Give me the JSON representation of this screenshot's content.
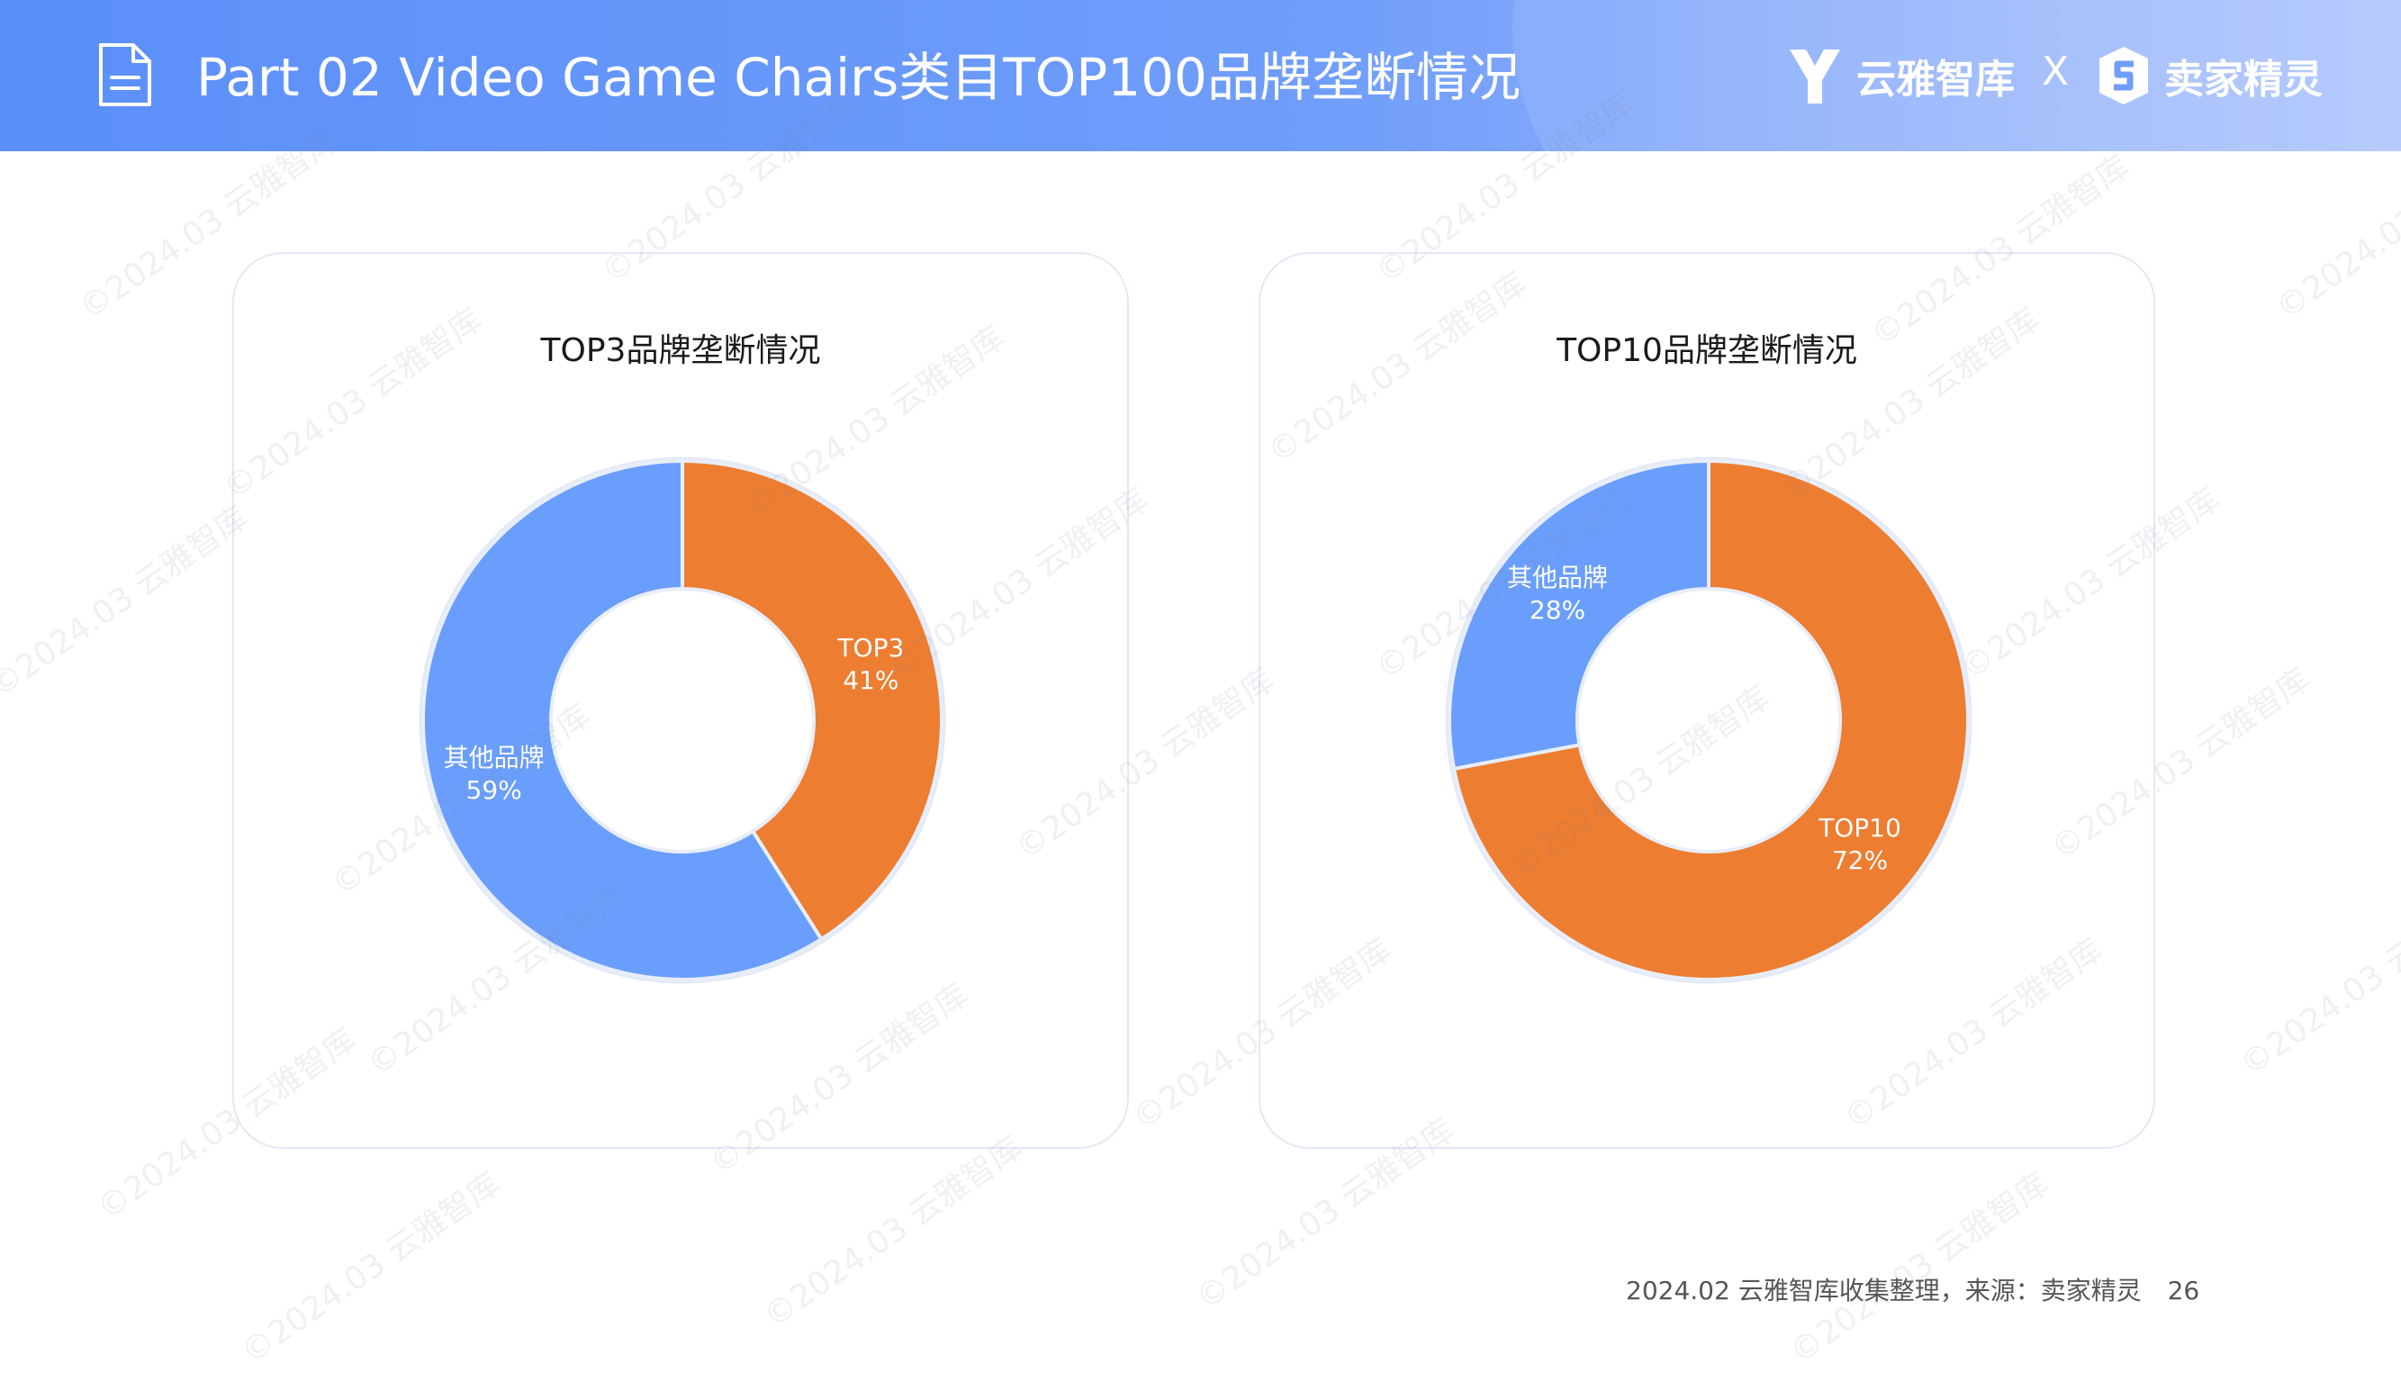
{
  "header": {
    "title": "Part 02 Video Game Chairs类目TOP100品牌垄断情况",
    "brand_left": "云雅智库",
    "brand_x": "X",
    "brand_right": "卖家精灵"
  },
  "colors": {
    "accent_orange": "#ed7d31",
    "accent_blue": "#6a9efc",
    "header_blue": "#5b8ff9"
  },
  "chart_data": [
    {
      "type": "pie",
      "title": "TOP3品牌垄断情况",
      "slices": [
        {
          "label": "TOP3",
          "value": 41,
          "display": "41%",
          "color": "#ed7d31"
        },
        {
          "label": "其他品牌",
          "value": 59,
          "display": "59%",
          "color": "#6a9efc"
        }
      ]
    },
    {
      "type": "pie",
      "title": "TOP10品牌垄断情况",
      "slices": [
        {
          "label": "TOP10",
          "value": 72,
          "display": "72%",
          "color": "#ed7d31"
        },
        {
          "label": "其他品牌",
          "value": 28,
          "display": "28%",
          "color": "#6a9efc"
        }
      ]
    }
  ],
  "watermark": "©2024.03 云雅智库",
  "footer": {
    "source": "2024.02 云雅智库收集整理，来源：卖家精灵",
    "page": "26"
  }
}
